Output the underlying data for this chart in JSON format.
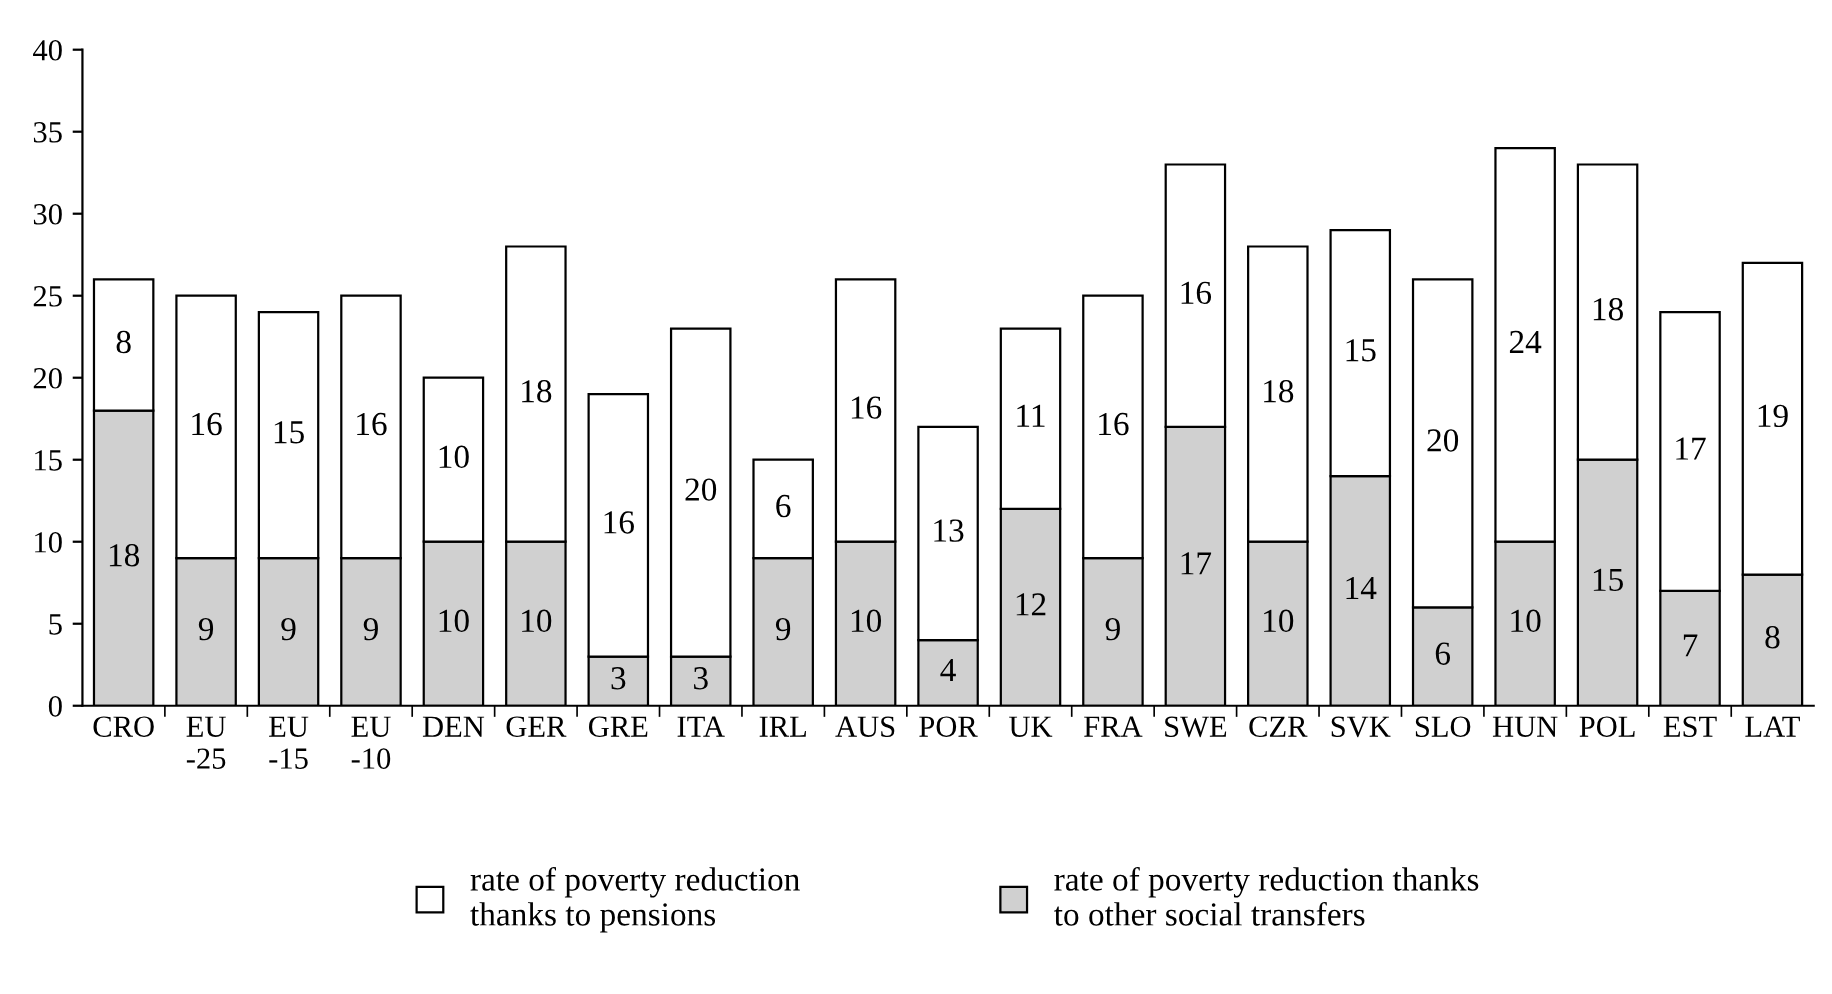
{
  "chart_data": {
    "type": "bar",
    "stacked": true,
    "data_labels": true,
    "legend": "bottom",
    "grid": false,
    "categories": [
      "CRO",
      "EU\n-25",
      "EU\n-15",
      "EU\n-10",
      "DEN",
      "GER",
      "GRE",
      "ITA",
      "IRL",
      "AUS",
      "POR",
      "UK",
      "FRA",
      "SWE",
      "CZR",
      "SVK",
      "SLO",
      "HUN",
      "POL",
      "EST",
      "LAT"
    ],
    "series": [
      {
        "name": "rate of poverty reduction thanks\nto other social transfers",
        "color": "#d0d0d0",
        "values": [
          18,
          9,
          9,
          9,
          10,
          10,
          3,
          3,
          9,
          10,
          4,
          12,
          9,
          17,
          10,
          14,
          6,
          10,
          15,
          7,
          8
        ]
      },
      {
        "name": "rate of poverty reduction\nthanks to pensions",
        "color": "#ffffff",
        "values": [
          8,
          16,
          15,
          16,
          10,
          18,
          16,
          20,
          6,
          16,
          13,
          11,
          16,
          16,
          18,
          15,
          20,
          24,
          18,
          17,
          19
        ]
      }
    ],
    "ylim": [
      0,
      40
    ],
    "yticks": [
      0,
      5,
      10,
      15,
      20,
      25,
      30,
      35,
      40
    ]
  }
}
